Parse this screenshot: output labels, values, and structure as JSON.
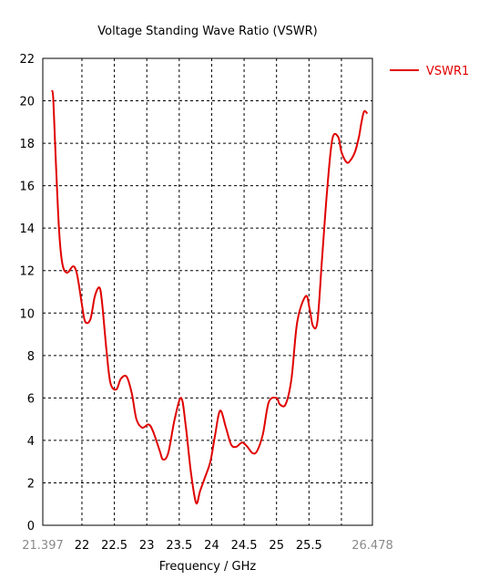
{
  "chart_data": {
    "type": "line",
    "title": "Voltage Standing Wave Ratio (VSWR)",
    "xlabel": "Frequency / GHz",
    "ylabel": "",
    "xlim": [
      21.397,
      26.478
    ],
    "ylim": [
      0,
      22
    ],
    "x_ticks": [
      "21.397",
      "22",
      "22.5",
      "23",
      "23.5",
      "24",
      "24.5",
      "25",
      "25.5",
      "26.478"
    ],
    "x_tick_values": [
      21.397,
      22,
      22.5,
      23,
      23.5,
      24,
      24.5,
      25,
      25.5,
      26.478
    ],
    "x_grid_values": [
      22,
      22.5,
      23,
      23.5,
      24,
      24.5,
      25,
      25.5,
      26
    ],
    "y_ticks": [
      "0",
      "2",
      "4",
      "6",
      "8",
      "10",
      "12",
      "14",
      "16",
      "18",
      "20",
      "22"
    ],
    "y_tick_values": [
      0,
      2,
      4,
      6,
      8,
      10,
      12,
      14,
      16,
      18,
      20,
      22
    ],
    "grid": true,
    "legend_position": "top-right",
    "series": [
      {
        "name": "VSWR1",
        "color": "#e00000",
        "x": [
          21.54,
          21.56,
          21.6,
          21.65,
          21.7,
          21.77,
          21.86,
          21.91,
          21.95,
          22.0,
          22.05,
          22.13,
          22.2,
          22.27,
          22.31,
          22.38,
          22.44,
          22.53,
          22.6,
          22.69,
          22.77,
          22.84,
          22.93,
          23.03,
          23.1,
          23.2,
          23.25,
          23.33,
          23.43,
          23.53,
          23.6,
          23.68,
          23.76,
          23.82,
          23.89,
          23.98,
          24.05,
          24.13,
          24.22,
          24.3,
          24.38,
          24.47,
          24.55,
          24.63,
          24.7,
          24.79,
          24.88,
          25.0,
          25.05,
          25.14,
          25.23,
          25.32,
          25.45,
          25.51,
          25.56,
          25.63,
          25.7,
          25.78,
          25.86,
          25.95,
          26.0,
          26.08,
          26.14,
          26.21,
          26.27,
          26.31,
          26.35,
          26.4
        ],
        "values": [
          20.5,
          20.0,
          17.0,
          13.8,
          12.3,
          11.9,
          12.2,
          12.0,
          11.4,
          10.4,
          9.6,
          9.7,
          10.8,
          11.2,
          10.5,
          8.2,
          6.7,
          6.4,
          6.9,
          7.0,
          6.2,
          5.0,
          4.6,
          4.75,
          4.4,
          3.5,
          3.1,
          3.4,
          5.0,
          6.0,
          4.7,
          2.5,
          1.05,
          1.6,
          2.2,
          3.0,
          4.2,
          5.4,
          4.6,
          3.8,
          3.7,
          3.9,
          3.7,
          3.4,
          3.5,
          4.3,
          5.8,
          6.0,
          5.7,
          5.7,
          6.9,
          9.6,
          10.8,
          10.2,
          9.4,
          9.6,
          12.5,
          15.8,
          18.2,
          18.3,
          17.6,
          17.1,
          17.2,
          17.6,
          18.3,
          19.0,
          19.5,
          19.4
        ]
      }
    ]
  }
}
